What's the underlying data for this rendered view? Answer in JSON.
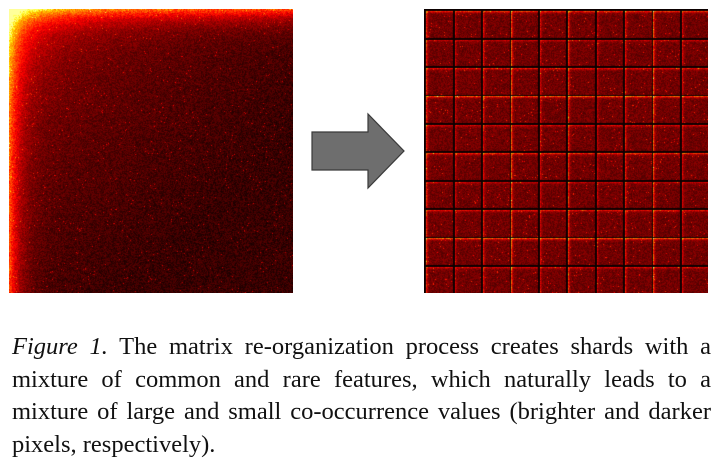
{
  "figure": {
    "colors": {
      "background": "#000000",
      "heat_low": "#1a0000",
      "heat_mid": "#b01000",
      "heat_high": "#ffe060",
      "arrow_fill": "#6e6e6e",
      "arrow_stroke": "#3a3a3a"
    },
    "left_panel": {
      "description_icon": "co-occurrence-matrix-heatmap"
    },
    "right_panel": {
      "description_icon": "sharded-matrix-heatmap",
      "grid_blocks": 10
    },
    "arrow": {
      "icon": "right-arrow-icon"
    },
    "caption": {
      "label": "Figure 1.",
      "text": "The matrix re-organization process creates shards with a mixture of common and rare features, which naturally leads to a mixture of large and small co-occurrence values (brighter and darker pixels, respectively)."
    }
  }
}
